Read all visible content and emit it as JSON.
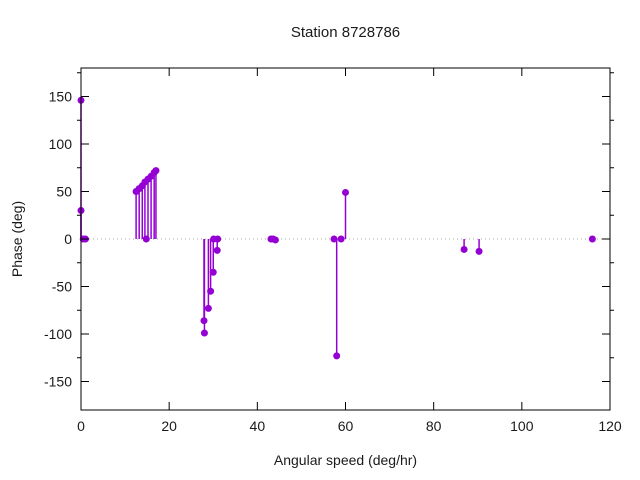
{
  "title": "Station 8728786",
  "xlabel": "Angular speed (deg/hr)",
  "ylabel": "Phase (deg)",
  "chart_data": {
    "type": "stem",
    "title": "Station 8728786",
    "xlabel": "Angular speed (deg/hr)",
    "ylabel": "Phase (deg)",
    "x_range": [
      0,
      120
    ],
    "y_range": [
      -180,
      180
    ],
    "x_ticks": [
      0,
      20,
      40,
      60,
      80,
      100,
      120
    ],
    "y_ticks": [
      -150,
      -100,
      -50,
      0,
      50,
      100,
      150
    ],
    "y_minor_step": 25,
    "zero_line": "dotted",
    "legend": "none",
    "marker_color": "#9400d3",
    "frame_color": "#000000",
    "zero_line_color": "#aaaaaa",
    "points": [
      [
        0,
        146
      ],
      [
        0,
        30
      ],
      [
        0.5,
        0
      ],
      [
        1.0,
        0
      ],
      [
        12.5,
        50
      ],
      [
        13.2,
        53
      ],
      [
        13.9,
        56
      ],
      [
        14.5,
        60
      ],
      [
        15.2,
        63
      ],
      [
        15.9,
        66
      ],
      [
        16.6,
        70
      ],
      [
        17.0,
        72
      ],
      [
        14.8,
        0
      ],
      [
        30.1,
        0
      ],
      [
        31.0,
        0
      ],
      [
        30.9,
        -12
      ],
      [
        30.0,
        -35
      ],
      [
        29.4,
        -55
      ],
      [
        28.9,
        -73
      ],
      [
        27.9,
        -86
      ],
      [
        28.0,
        -99
      ],
      [
        43.1,
        0
      ],
      [
        43.6,
        0
      ],
      [
        44.1,
        -1
      ],
      [
        57.4,
        0
      ],
      [
        59.0,
        0
      ],
      [
        58.0,
        -123
      ],
      [
        60.0,
        49
      ],
      [
        86.9,
        -11
      ],
      [
        90.3,
        -13
      ],
      [
        116.0,
        0
      ]
    ]
  }
}
